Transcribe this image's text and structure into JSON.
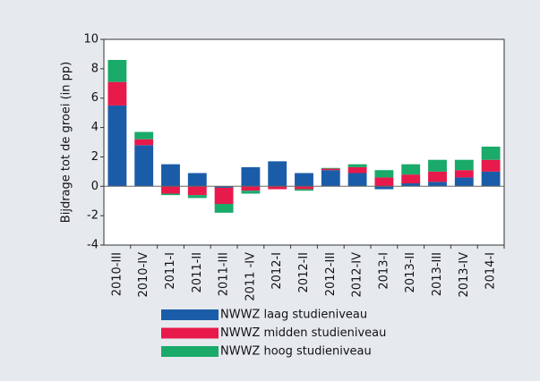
{
  "chart_data": {
    "type": "stacked_bar",
    "y_label": "Bijdrage tot de groei (in pp)",
    "categories": [
      "2010-III",
      "2010-IV",
      "2011-I",
      "2011-II",
      "2011-III",
      "2011 -IV",
      "2012-I",
      "2012-II",
      "2012-III",
      "2012-IV",
      "2013-I",
      "2013-II",
      "2013-III",
      "2013-IV",
      "2014-I"
    ],
    "series": [
      {
        "name": "NWWZ laag studieniveau",
        "color": "#1b5ca8",
        "values": [
          5.5,
          2.8,
          1.5,
          0.9,
          -0.1,
          1.3,
          1.7,
          0.9,
          1.1,
          0.9,
          -0.2,
          0.2,
          0.3,
          0.6,
          1.0
        ]
      },
      {
        "name": "NWWZ midden studieniveau",
        "color": "#e8194b",
        "values": [
          1.6,
          0.4,
          -0.5,
          -0.6,
          -1.1,
          -0.3,
          -0.2,
          -0.2,
          0.1,
          0.4,
          0.6,
          0.6,
          0.7,
          0.5,
          0.8
        ]
      },
      {
        "name": "NWWZ hoog studieniveau",
        "color": "#1aaa6a",
        "values": [
          1.5,
          0.5,
          -0.1,
          -0.2,
          -0.6,
          -0.2,
          0,
          -0.1,
          0.05,
          0.2,
          0.5,
          0.7,
          0.8,
          0.7,
          0.9
        ]
      }
    ],
    "ylim": [
      -4,
      10
    ],
    "yticks": [
      -4,
      -2,
      0,
      2,
      4,
      6,
      8,
      10
    ]
  }
}
